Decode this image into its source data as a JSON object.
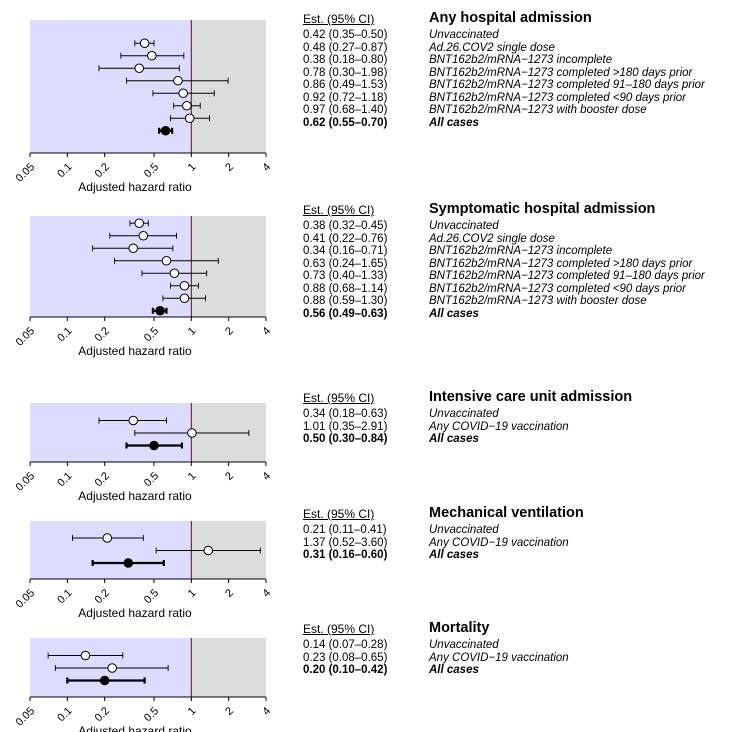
{
  "est_header": "Est. (95% CI)",
  "xlabel": "Adjusted hazard ratio",
  "xticks": [
    0.05,
    0.1,
    0.2,
    0.5,
    1,
    2,
    4
  ],
  "xtick_labels": [
    "0.05",
    "0.1",
    "0.2",
    "0.5",
    "1",
    "2",
    "4"
  ],
  "colors": {
    "left_bg": "#dcdcff",
    "right_bg": "#dcdcdc",
    "ref_line": "#e00000"
  },
  "chart_data": [
    {
      "type": "forest",
      "title": "Any hospital admission",
      "x_scale": "log",
      "xlim": [
        0.05,
        4
      ],
      "reference": 1,
      "rows": [
        {
          "label": "Unvaccinated",
          "est_text": "0.42 (0.35–0.50)",
          "est": 0.42,
          "lo": 0.35,
          "hi": 0.5,
          "bold": false
        },
        {
          "label": "Ad.26.COV2 single dose",
          "est_text": "0.48 (0.27–0.87)",
          "est": 0.48,
          "lo": 0.27,
          "hi": 0.87,
          "bold": false
        },
        {
          "label": "BNT162b2/mRNA−1273 incomplete",
          "est_text": "0.38 (0.18–0.80)",
          "est": 0.38,
          "lo": 0.18,
          "hi": 0.8,
          "bold": false
        },
        {
          "label": "BNT162b2/mRNA−1273 completed >180 days prior",
          "est_text": "0.78 (0.30–1.98)",
          "est": 0.78,
          "lo": 0.3,
          "hi": 1.98,
          "bold": false
        },
        {
          "label": "BNT162b2/mRNA−1273 completed 91–180 days prior",
          "est_text": "0.86 (0.49–1.53)",
          "est": 0.86,
          "lo": 0.49,
          "hi": 1.53,
          "bold": false
        },
        {
          "label": "BNT162b2/mRNA−1273 completed <90 days prior",
          "est_text": "0.92 (0.72–1.18)",
          "est": 0.92,
          "lo": 0.72,
          "hi": 1.18,
          "bold": false
        },
        {
          "label": "BNT162b2/mRNA−1273 with booster dose",
          "est_text": "0.97 (0.68–1.40)",
          "est": 0.97,
          "lo": 0.68,
          "hi": 1.4,
          "bold": false
        },
        {
          "label": "All cases",
          "est_text": "0.62 (0.55–0.70)",
          "est": 0.62,
          "lo": 0.55,
          "hi": 0.7,
          "bold": true
        }
      ]
    },
    {
      "type": "forest",
      "title": "Symptomatic hospital admission",
      "x_scale": "log",
      "xlim": [
        0.05,
        4
      ],
      "reference": 1,
      "rows": [
        {
          "label": "Unvaccinated",
          "est_text": "0.38 (0.32–0.45)",
          "est": 0.38,
          "lo": 0.32,
          "hi": 0.45,
          "bold": false
        },
        {
          "label": "Ad.26.COV2 single dose",
          "est_text": "0.41 (0.22–0.76)",
          "est": 0.41,
          "lo": 0.22,
          "hi": 0.76,
          "bold": false
        },
        {
          "label": "BNT162b2/mRNA−1273 incomplete",
          "est_text": "0.34 (0.16–0.71)",
          "est": 0.34,
          "lo": 0.16,
          "hi": 0.71,
          "bold": false
        },
        {
          "label": "BNT162b2/mRNA−1273 completed >180 days prior",
          "est_text": "0.63 (0.24–1.65)",
          "est": 0.63,
          "lo": 0.24,
          "hi": 1.65,
          "bold": false
        },
        {
          "label": "BNT162b2/mRNA−1273 completed 91–180 days prior",
          "est_text": "0.73 (0.40–1.33)",
          "est": 0.73,
          "lo": 0.4,
          "hi": 1.33,
          "bold": false
        },
        {
          "label": "BNT162b2/mRNA−1273 completed <90 days prior",
          "est_text": "0.88 (0.68–1.14)",
          "est": 0.88,
          "lo": 0.68,
          "hi": 1.14,
          "bold": false
        },
        {
          "label": "BNT162b2/mRNA−1273 with booster dose",
          "est_text": "0.88 (0.59–1.30)",
          "est": 0.88,
          "lo": 0.59,
          "hi": 1.3,
          "bold": false
        },
        {
          "label": "All cases",
          "est_text": "0.56 (0.49–0.63)",
          "est": 0.56,
          "lo": 0.49,
          "hi": 0.63,
          "bold": true
        }
      ]
    },
    {
      "type": "forest",
      "title": "Intensive care unit admission",
      "x_scale": "log",
      "xlim": [
        0.05,
        4
      ],
      "reference": 1,
      "rows": [
        {
          "label": "Unvaccinated",
          "est_text": "0.34 (0.18–0.63)",
          "est": 0.34,
          "lo": 0.18,
          "hi": 0.63,
          "bold": false
        },
        {
          "label": "Any COVID−19 vaccination",
          "est_text": "1.01 (0.35–2.91)",
          "est": 1.01,
          "lo": 0.35,
          "hi": 2.91,
          "bold": false
        },
        {
          "label": "All cases",
          "est_text": "0.50 (0.30–0.84)",
          "est": 0.5,
          "lo": 0.3,
          "hi": 0.84,
          "bold": true
        }
      ]
    },
    {
      "type": "forest",
      "title": "Mechanical ventilation",
      "x_scale": "log",
      "xlim": [
        0.05,
        4
      ],
      "reference": 1,
      "rows": [
        {
          "label": "Unvaccinated",
          "est_text": "0.21 (0.11–0.41)",
          "est": 0.21,
          "lo": 0.11,
          "hi": 0.41,
          "bold": false
        },
        {
          "label": "Any COVID−19 vaccination",
          "est_text": "1.37 (0.52–3.60)",
          "est": 1.37,
          "lo": 0.52,
          "hi": 3.6,
          "bold": false
        },
        {
          "label": "All cases",
          "est_text": "0.31 (0.16–0.60)",
          "est": 0.31,
          "lo": 0.16,
          "hi": 0.6,
          "bold": true
        }
      ]
    },
    {
      "type": "forest",
      "title": "Mortality",
      "x_scale": "log",
      "xlim": [
        0.05,
        4
      ],
      "reference": 1,
      "rows": [
        {
          "label": "Unvaccinated",
          "est_text": "0.14 (0.07–0.28)",
          "est": 0.14,
          "lo": 0.07,
          "hi": 0.28,
          "bold": false
        },
        {
          "label": "Any COVID−19 vaccination",
          "est_text": "0.23 (0.08–0.65)",
          "est": 0.23,
          "lo": 0.08,
          "hi": 0.65,
          "bold": false
        },
        {
          "label": "All cases",
          "est_text": "0.20 (0.10–0.42)",
          "est": 0.2,
          "lo": 0.1,
          "hi": 0.42,
          "bold": true
        }
      ]
    }
  ]
}
